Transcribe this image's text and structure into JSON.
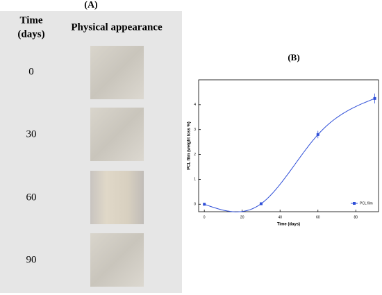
{
  "panel_a": {
    "label": "(A)",
    "header_time": [
      "Time",
      "(days)"
    ],
    "header_appearance": "Physical appearance",
    "rows": [
      "0",
      "30",
      "60",
      "90"
    ]
  },
  "chart_data": {
    "type": "line",
    "label": "(B)",
    "x_label": "Time (days)",
    "y_label": "PCL film (weight loss %)",
    "x": [
      0,
      30,
      60,
      90
    ],
    "series": [
      {
        "name": "PCL film",
        "color": "#2f4fd8",
        "values": [
          0,
          0.02,
          2.8,
          4.25
        ],
        "errors": [
          0.05,
          0.05,
          0.15,
          0.2
        ]
      }
    ],
    "xlim": [
      -3,
      92
    ],
    "xticks": [
      0,
      20,
      40,
      60,
      80
    ],
    "ylim": [
      -0.3,
      5
    ],
    "yticks": [
      0,
      1,
      2,
      3,
      4
    ],
    "smooth": true,
    "legend": "lower right"
  }
}
